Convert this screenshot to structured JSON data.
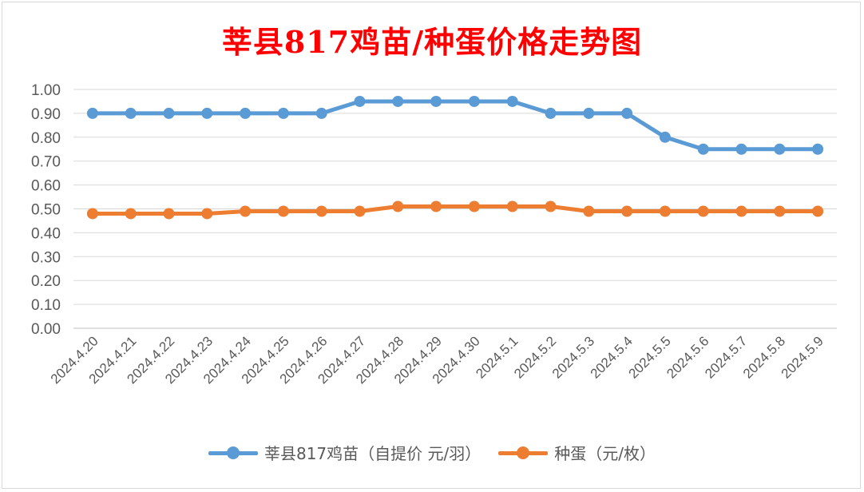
{
  "chart_data": {
    "type": "line",
    "title": "莘县817鸡苗/种蛋价格走势图",
    "categories": [
      "2024.4.20",
      "2024.4.21",
      "2024.4.22",
      "2024.4.23",
      "2024.4.24",
      "2024.4.25",
      "2024.4.26",
      "2024.4.27",
      "2024.4.28",
      "2024.4.29",
      "2024.4.30",
      "2024.5.1",
      "2024.5.2",
      "2024.5.3",
      "2024.5.4",
      "2024.5.5",
      "2024.5.6",
      "2024.5.7",
      "2024.5.8",
      "2024.5.9"
    ],
    "series": [
      {
        "name": "莘县817鸡苗（自提价 元/羽）",
        "color": "#5b9bd5",
        "values": [
          0.9,
          0.9,
          0.9,
          0.9,
          0.9,
          0.9,
          0.9,
          0.95,
          0.95,
          0.95,
          0.95,
          0.95,
          0.9,
          0.9,
          0.9,
          0.8,
          0.75,
          0.75,
          0.75,
          0.75
        ]
      },
      {
        "name": "种蛋（元/枚）",
        "color": "#ed7d31",
        "values": [
          0.48,
          0.48,
          0.48,
          0.48,
          0.49,
          0.49,
          0.49,
          0.49,
          0.51,
          0.51,
          0.51,
          0.51,
          0.51,
          0.49,
          0.49,
          0.49,
          0.49,
          0.49,
          0.49,
          0.49
        ]
      }
    ],
    "ylim": [
      0,
      1.0
    ],
    "yticks": [
      "0.00",
      "0.10",
      "0.20",
      "0.30",
      "0.40",
      "0.50",
      "0.60",
      "0.70",
      "0.80",
      "0.90",
      "1.00"
    ],
    "grid": true,
    "legend": "bottom",
    "title_color": "#ff0000"
  }
}
